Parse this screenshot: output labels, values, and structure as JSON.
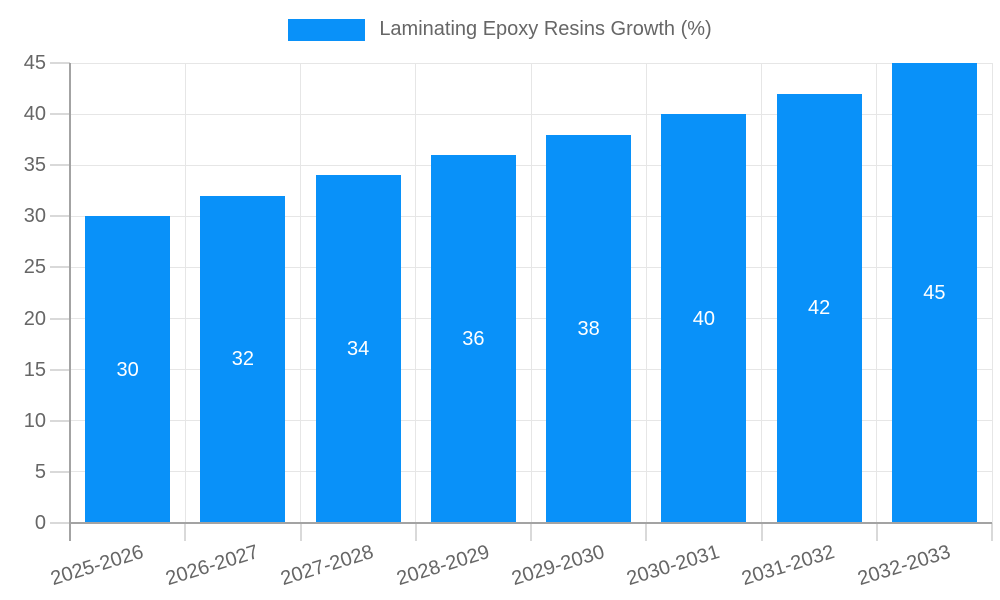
{
  "legend": {
    "label": "Laminating Epoxy Resins Growth (%)"
  },
  "chart_data": {
    "type": "bar",
    "title": "Laminating Epoxy Resins Growth (%)",
    "categories": [
      "2025-2026",
      "2026-2027",
      "2027-2028",
      "2028-2029",
      "2029-2030",
      "2030-2031",
      "2031-2032",
      "2032-2033"
    ],
    "values": [
      30,
      32,
      34,
      36,
      38,
      40,
      42,
      45
    ],
    "xlabel": "",
    "ylabel": "",
    "ylim": [
      0,
      45
    ],
    "ytick_step": 5,
    "ytick_labels": [
      "0",
      "5",
      "10",
      "15",
      "20",
      "25",
      "30",
      "35",
      "40",
      "45"
    ],
    "grid": true,
    "legend_position": "top",
    "bar_labels_inside": true,
    "colors": {
      "bar": "#0991f9",
      "bar_label": "#ffffff",
      "grid": "#e6e6e6",
      "tick": "#d9d9d9",
      "axis": "#a3a3a3",
      "text": "#666666",
      "background": "#ffffff"
    }
  }
}
